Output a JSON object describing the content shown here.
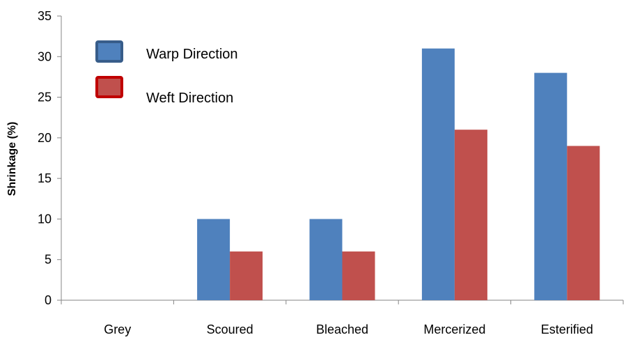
{
  "chart_data": {
    "type": "bar",
    "title": "",
    "xlabel": "",
    "ylabel": "Shrinkage (%)",
    "ylim": [
      0,
      35
    ],
    "yticks": [
      0,
      5,
      10,
      15,
      20,
      25,
      30,
      35
    ],
    "grid": false,
    "legend_position": "top-left",
    "categories": [
      "Grey",
      "Scoured",
      "Bleached",
      "Mercerized",
      "Esterified"
    ],
    "series": [
      {
        "name": "Warp Direction",
        "color": "#4F81BD",
        "border": "#385D8A",
        "values": [
          0,
          10,
          10,
          31,
          28
        ]
      },
      {
        "name": "Weft Direction",
        "color": "#C0504D",
        "border": "#C00000",
        "values": [
          0,
          6,
          6,
          21,
          19
        ]
      }
    ]
  }
}
